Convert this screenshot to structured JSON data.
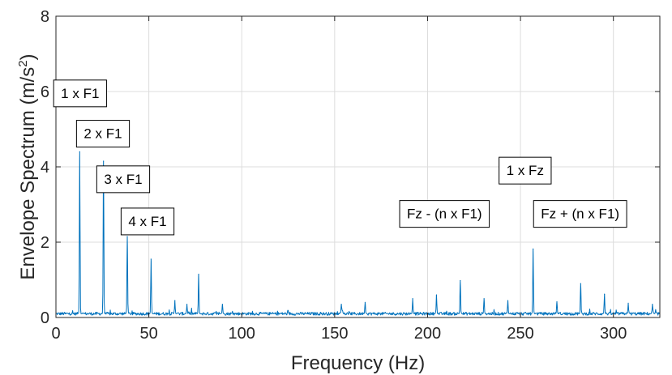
{
  "chart_data": {
    "type": "line",
    "xlabel": "Frequency (Hz)",
    "ylabel_main": "Envelope Spectrum (m/s",
    "ylabel_sup": "2",
    "ylabel_end": ")",
    "xlim": [
      0,
      325
    ],
    "ylim": [
      0,
      8
    ],
    "xticks": [
      0,
      50,
      100,
      150,
      200,
      250,
      300
    ],
    "yticks": [
      0,
      2,
      4,
      6,
      8
    ],
    "grid": true,
    "line_color": "#0072BD",
    "series": [
      {
        "baseline": 0.1,
        "peaks": [
          {
            "x": 12.8,
            "y": 4.4
          },
          {
            "x": 25.6,
            "y": 4.15
          },
          {
            "x": 38.4,
            "y": 2.15
          },
          {
            "x": 51.2,
            "y": 1.55
          },
          {
            "x": 64.0,
            "y": 0.45
          },
          {
            "x": 70.5,
            "y": 0.35
          },
          {
            "x": 76.8,
            "y": 1.15
          },
          {
            "x": 89.6,
            "y": 0.35
          },
          {
            "x": 153.6,
            "y": 0.35
          },
          {
            "x": 166.4,
            "y": 0.4
          },
          {
            "x": 192.0,
            "y": 0.5
          },
          {
            "x": 204.8,
            "y": 0.6
          },
          {
            "x": 217.6,
            "y": 0.98
          },
          {
            "x": 230.4,
            "y": 0.5
          },
          {
            "x": 243.2,
            "y": 0.45
          },
          {
            "x": 256.8,
            "y": 1.82
          },
          {
            "x": 269.6,
            "y": 0.42
          },
          {
            "x": 282.4,
            "y": 0.9
          },
          {
            "x": 295.2,
            "y": 0.62
          },
          {
            "x": 308.0,
            "y": 0.38
          },
          {
            "x": 321.0,
            "y": 0.35
          }
        ]
      }
    ],
    "annotations": [
      {
        "text": "1 x F1",
        "x": 13,
        "y": 5.95
      },
      {
        "text": "2 x F1",
        "x": 25.3,
        "y": 4.88
      },
      {
        "text": "3 x F1",
        "x": 36.2,
        "y": 3.67
      },
      {
        "text": "4 x F1",
        "x": 49.3,
        "y": 2.55
      },
      {
        "text": "1 x Fz",
        "x": 252.5,
        "y": 3.9
      },
      {
        "text": "Fz - (n x F1)",
        "x": 209.1,
        "y": 2.75
      },
      {
        "text": "Fz + (n x F1)",
        "x": 282.1,
        "y": 2.75
      }
    ]
  }
}
